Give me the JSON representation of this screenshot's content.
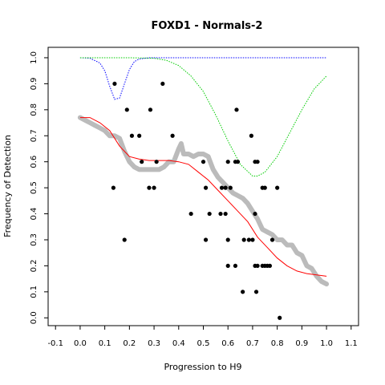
{
  "chart_data": {
    "type": "scatter",
    "title": "FOXD1 - Normals-2",
    "xlabel": "Progression to H9",
    "ylabel": "Frequency of Detection",
    "xlim": [
      -0.13,
      1.13
    ],
    "ylim": [
      -0.03,
      1.04
    ],
    "x_ticks": [
      "-0.1",
      "0.0",
      "0.1",
      "0.2",
      "0.3",
      "0.4",
      "0.5",
      "0.6",
      "0.7",
      "0.8",
      "0.9",
      "1.0",
      "1.1"
    ],
    "y_ticks": [
      "0.0",
      "0.1",
      "0.2",
      "0.3",
      "0.4",
      "0.5",
      "0.6",
      "0.7",
      "0.8",
      "0.9",
      "1.0"
    ],
    "grid": false,
    "series": [
      {
        "style": "points",
        "color": "#000000",
        "points": [
          [
            0.14,
            0.9
          ],
          [
            0.335,
            0.9
          ],
          [
            0.19,
            0.8
          ],
          [
            0.285,
            0.8
          ],
          [
            0.635,
            0.8
          ],
          [
            0.21,
            0.7
          ],
          [
            0.24,
            0.7
          ],
          [
            0.375,
            0.7
          ],
          [
            0.695,
            0.7
          ],
          [
            0.25,
            0.6
          ],
          [
            0.31,
            0.6
          ],
          [
            0.5,
            0.6
          ],
          [
            0.6,
            0.6
          ],
          [
            0.63,
            0.6
          ],
          [
            0.64,
            0.6
          ],
          [
            0.71,
            0.6
          ],
          [
            0.72,
            0.6
          ],
          [
            0.135,
            0.5
          ],
          [
            0.28,
            0.5
          ],
          [
            0.3,
            0.5
          ],
          [
            0.51,
            0.5
          ],
          [
            0.575,
            0.5
          ],
          [
            0.59,
            0.5
          ],
          [
            0.61,
            0.5
          ],
          [
            0.74,
            0.5
          ],
          [
            0.75,
            0.5
          ],
          [
            0.8,
            0.5
          ],
          [
            0.45,
            0.4
          ],
          [
            0.525,
            0.4
          ],
          [
            0.57,
            0.4
          ],
          [
            0.59,
            0.4
          ],
          [
            0.71,
            0.4
          ],
          [
            0.18,
            0.3
          ],
          [
            0.51,
            0.3
          ],
          [
            0.6,
            0.3
          ],
          [
            0.665,
            0.3
          ],
          [
            0.685,
            0.3
          ],
          [
            0.7,
            0.3
          ],
          [
            0.78,
            0.3
          ],
          [
            0.6,
            0.2
          ],
          [
            0.63,
            0.2
          ],
          [
            0.71,
            0.2
          ],
          [
            0.72,
            0.2
          ],
          [
            0.74,
            0.2
          ],
          [
            0.75,
            0.2
          ],
          [
            0.76,
            0.2
          ],
          [
            0.77,
            0.2
          ],
          [
            0.66,
            0.1
          ],
          [
            0.715,
            0.1
          ],
          [
            0.81,
            0.0
          ]
        ]
      },
      {
        "style": "thick-line",
        "color": "#bbbbbb",
        "x": [
          0.0,
          0.02,
          0.04,
          0.06,
          0.08,
          0.1,
          0.12,
          0.14,
          0.16,
          0.18,
          0.2,
          0.22,
          0.24,
          0.26,
          0.28,
          0.3,
          0.32,
          0.34,
          0.36,
          0.38,
          0.4,
          0.41,
          0.42,
          0.44,
          0.46,
          0.48,
          0.5,
          0.52,
          0.54,
          0.56,
          0.58,
          0.6,
          0.62,
          0.64,
          0.66,
          0.68,
          0.7,
          0.72,
          0.74,
          0.76,
          0.78,
          0.8,
          0.82,
          0.84,
          0.86,
          0.88,
          0.9,
          0.92,
          0.94,
          0.96,
          0.98,
          1.0
        ],
        "y": [
          0.77,
          0.76,
          0.75,
          0.74,
          0.73,
          0.72,
          0.7,
          0.7,
          0.69,
          0.64,
          0.6,
          0.58,
          0.57,
          0.57,
          0.57,
          0.57,
          0.57,
          0.58,
          0.6,
          0.6,
          0.65,
          0.67,
          0.63,
          0.63,
          0.62,
          0.63,
          0.63,
          0.62,
          0.57,
          0.54,
          0.52,
          0.5,
          0.48,
          0.47,
          0.46,
          0.44,
          0.41,
          0.38,
          0.34,
          0.33,
          0.32,
          0.3,
          0.3,
          0.28,
          0.28,
          0.25,
          0.24,
          0.2,
          0.19,
          0.16,
          0.14,
          0.13
        ]
      },
      {
        "style": "line",
        "color": "#ff0000",
        "x": [
          0.0,
          0.04,
          0.08,
          0.12,
          0.16,
          0.2,
          0.24,
          0.28,
          0.32,
          0.36,
          0.4,
          0.44,
          0.48,
          0.52,
          0.56,
          0.6,
          0.64,
          0.68,
          0.72,
          0.76,
          0.8,
          0.84,
          0.88,
          0.92,
          0.96,
          1.0
        ],
        "y": [
          0.77,
          0.77,
          0.75,
          0.72,
          0.66,
          0.62,
          0.61,
          0.605,
          0.605,
          0.605,
          0.6,
          0.59,
          0.56,
          0.53,
          0.49,
          0.45,
          0.41,
          0.37,
          0.31,
          0.27,
          0.23,
          0.2,
          0.18,
          0.17,
          0.165,
          0.16
        ]
      },
      {
        "style": "dotted",
        "color": "#0000ff",
        "x": [
          0.0,
          0.04,
          0.08,
          0.1,
          0.12,
          0.14,
          0.16,
          0.18,
          0.2,
          0.22,
          0.24,
          0.28,
          0.3,
          0.4,
          0.5,
          0.6,
          0.7,
          0.8,
          0.9,
          1.0
        ],
        "y": [
          1.0,
          0.998,
          0.98,
          0.95,
          0.89,
          0.84,
          0.845,
          0.9,
          0.955,
          0.985,
          0.995,
          1.0,
          1.0,
          1.0,
          1.0,
          1.0,
          1.0,
          1.0,
          1.0,
          1.0
        ]
      },
      {
        "style": "dotted",
        "color": "#00cc00",
        "x": [
          0.0,
          0.1,
          0.2,
          0.3,
          0.35,
          0.4,
          0.45,
          0.5,
          0.55,
          0.6,
          0.65,
          0.7,
          0.72,
          0.75,
          0.8,
          0.85,
          0.9,
          0.95,
          1.0
        ],
        "y": [
          1.0,
          1.0,
          1.0,
          0.998,
          0.99,
          0.97,
          0.93,
          0.87,
          0.78,
          0.68,
          0.59,
          0.545,
          0.545,
          0.56,
          0.62,
          0.71,
          0.8,
          0.88,
          0.93
        ]
      }
    ]
  }
}
